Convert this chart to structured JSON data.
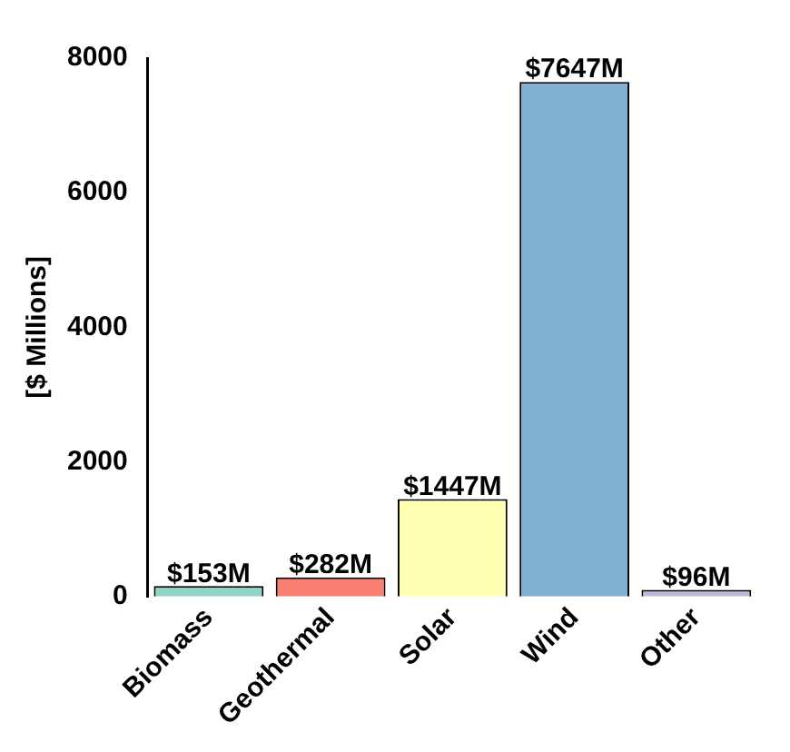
{
  "chart_data": {
    "type": "bar",
    "ylabel": "[$ Millions]",
    "categories": [
      "Biomass",
      "Geothermal",
      "Solar",
      "Wind",
      "Other"
    ],
    "values": [
      153,
      282,
      1447,
      7647,
      96
    ],
    "value_labels": [
      "$153M",
      "$282M",
      "$1447M",
      "$7647M",
      "$96M"
    ],
    "colors": [
      "#8dd3c7",
      "#fb8072",
      "#ffffb3",
      "#80b1d3",
      "#bebada"
    ],
    "ylim": [
      0,
      8000
    ],
    "yticks": [
      0,
      2000,
      4000,
      6000,
      8000
    ],
    "grid": false,
    "legend": false
  }
}
